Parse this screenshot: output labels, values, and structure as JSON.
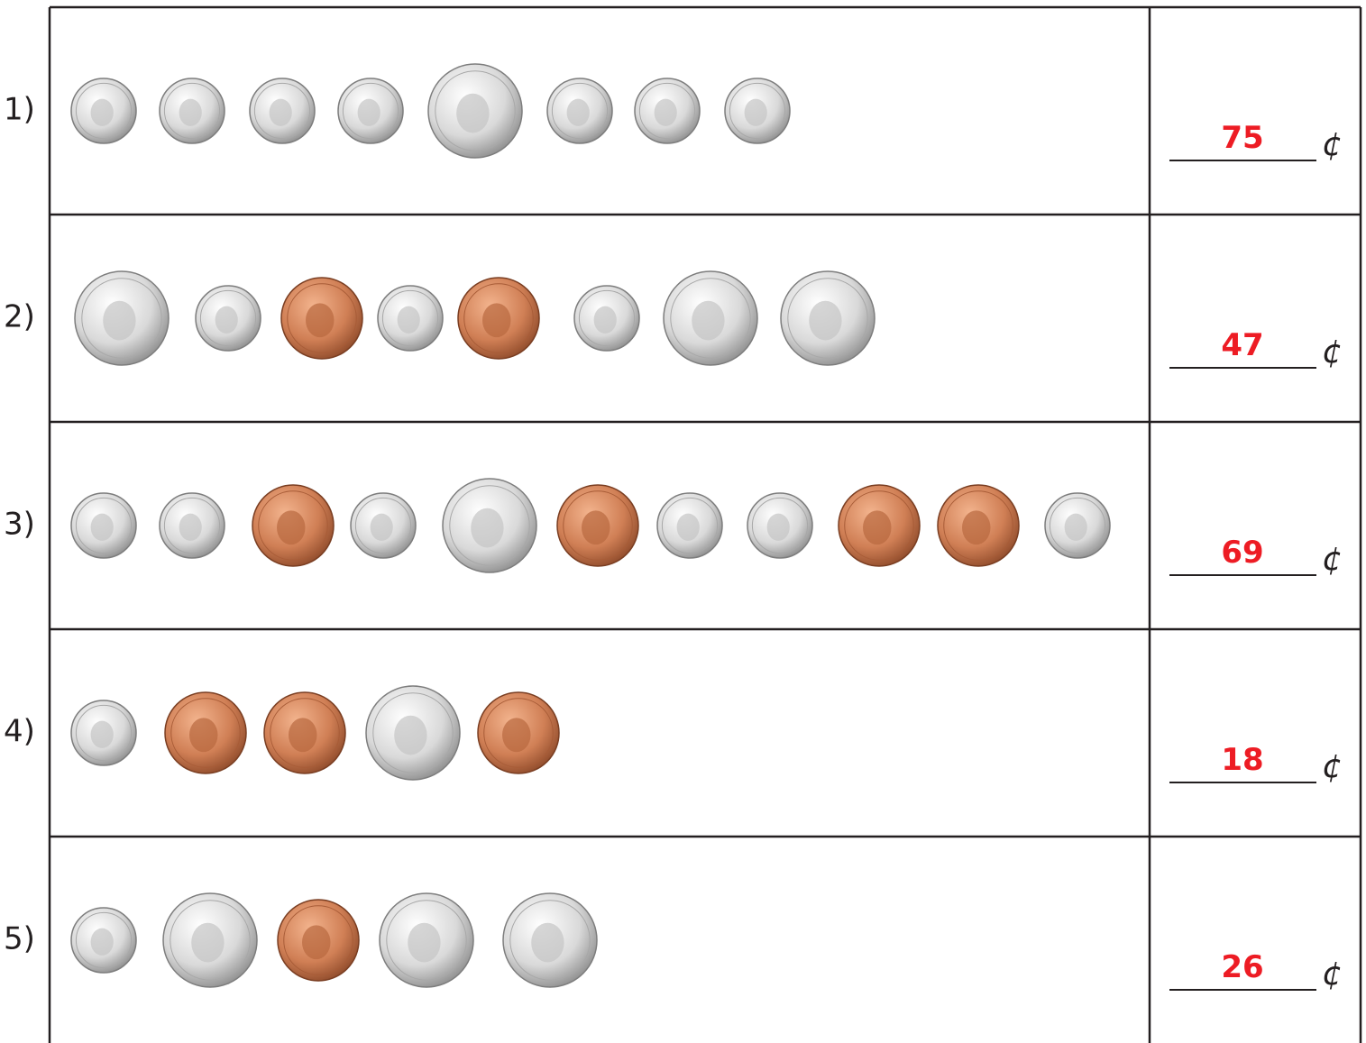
{
  "rows": [
    {
      "label": "1)",
      "answer": 75,
      "unit": "¢"
    },
    {
      "label": "2)",
      "answer": 47,
      "unit": "¢"
    },
    {
      "label": "3)",
      "answer": 69,
      "unit": "¢"
    },
    {
      "label": "4)",
      "answer": 18,
      "unit": "¢"
    },
    {
      "label": "5)",
      "answer": 26,
      "unit": "¢"
    }
  ]
}
